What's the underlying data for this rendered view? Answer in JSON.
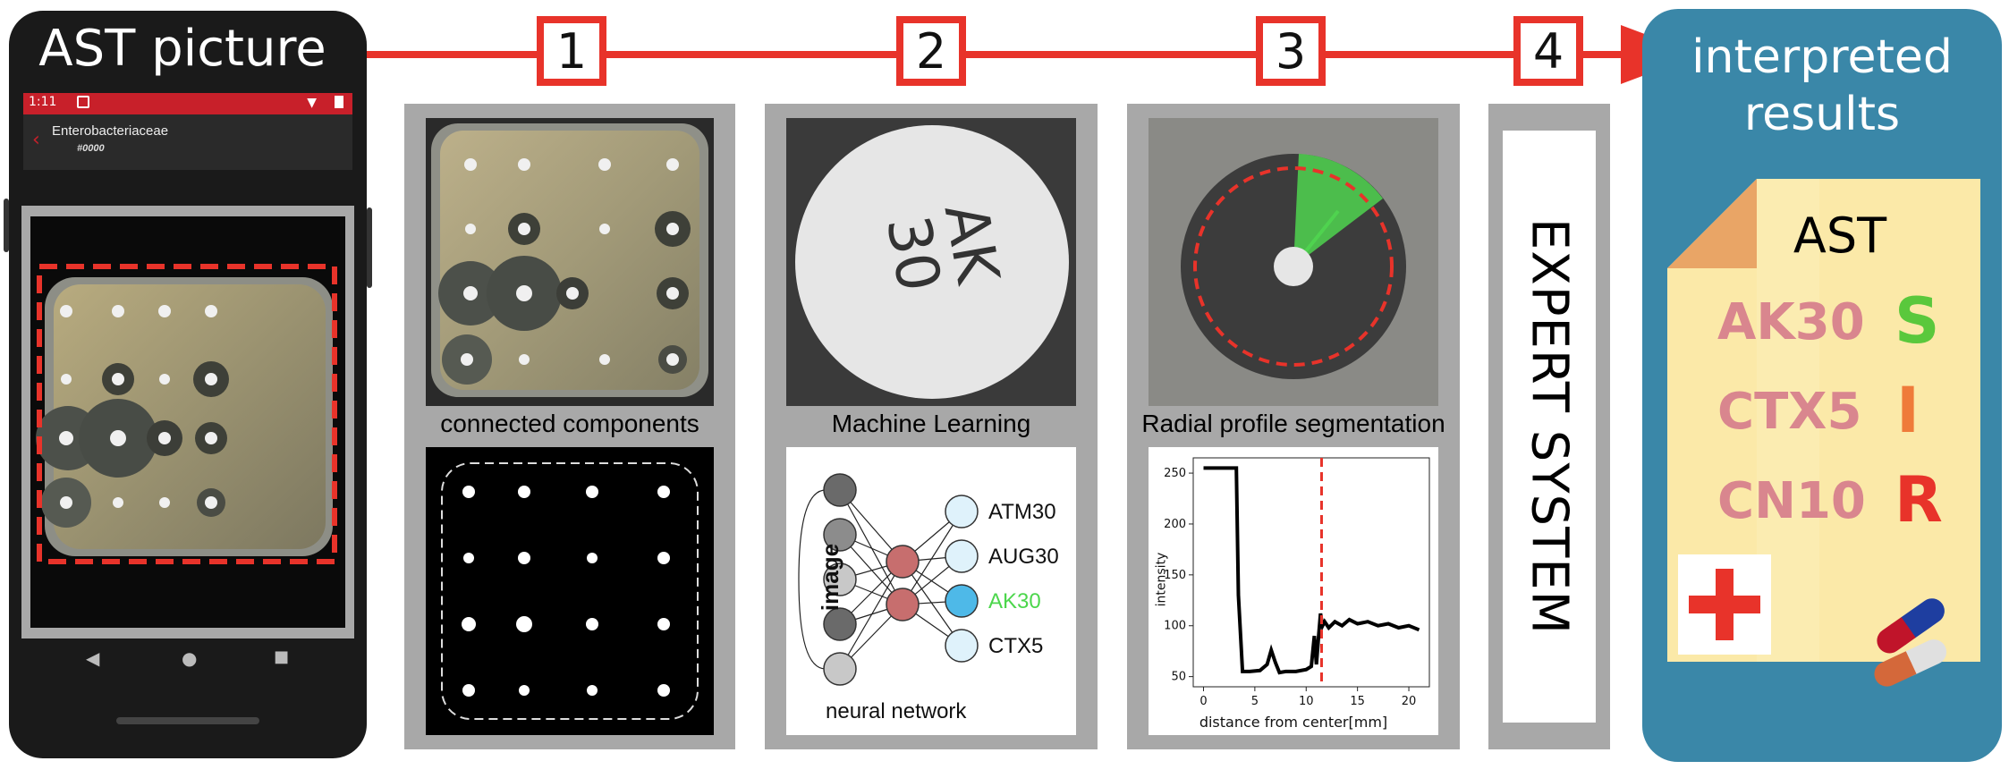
{
  "phone": {
    "title": "AST picture",
    "status_time": "1:11",
    "header_title": "Enterobacteriaceae",
    "header_sub": "#0000",
    "nav_back": "◀",
    "nav_home": "●",
    "nav_recent": "■"
  },
  "steps": [
    "1",
    "2",
    "3",
    "4"
  ],
  "panel1": {
    "caption": "connected components"
  },
  "panel2": {
    "caption": "Machine Learning",
    "disk_label_line1": "AK",
    "disk_label_line2": "30",
    "input_label": "image",
    "network_label": "neural network",
    "outputs": [
      "ATM30",
      "AUG30",
      "AK30",
      "CTX5"
    ],
    "highlight_color": "#4cd64c"
  },
  "panel3": {
    "caption": "Radial profile segmentation",
    "chart_data": {
      "type": "line",
      "xlabel": "distance from center[mm]",
      "ylabel": "intensity",
      "xlim": [
        -1,
        22
      ],
      "ylim": [
        40,
        265
      ],
      "x_ticks": [
        0,
        5,
        10,
        15,
        20
      ],
      "y_ticks": [
        50,
        100,
        150,
        200,
        250
      ],
      "threshold_x": 11.5,
      "threshold_color": "#e8332a",
      "series": [
        {
          "x": [
            0,
            3.2,
            3.4,
            3.8,
            4.5,
            5.5,
            6.2,
            6.6,
            7.0,
            7.4,
            8.0,
            9.0,
            10.0,
            10.5,
            10.8,
            11.0,
            11.2,
            11.4,
            11.6,
            11.8,
            12.2,
            12.8,
            13.5,
            14.2,
            15.0,
            16.0,
            17.0,
            18.0,
            19.0,
            20.0,
            21.0
          ],
          "y": [
            255,
            255,
            130,
            55,
            55,
            56,
            62,
            76,
            64,
            54,
            55,
            55,
            57,
            60,
            90,
            62,
            88,
            112,
            100,
            104,
            98,
            104,
            100,
            106,
            102,
            104,
            100,
            102,
            98,
            100,
            96
          ]
        }
      ]
    }
  },
  "expert": {
    "label": "EXPERT SYSTEM"
  },
  "results": {
    "title_line1": "interpreted",
    "title_line2": "results",
    "heading": "AST",
    "rows": [
      {
        "name": "AK30",
        "value": "S",
        "color": "#5ac83c"
      },
      {
        "name": "CTX5",
        "value": "I",
        "color": "#ef7b3a"
      },
      {
        "name": "CN10",
        "value": "R",
        "color": "#e8332a"
      }
    ],
    "cross_color": "#e8332a",
    "pill_colors": [
      "#c0142a",
      "#1e3ea0",
      "#d4683a",
      "#e0e0e0"
    ]
  }
}
